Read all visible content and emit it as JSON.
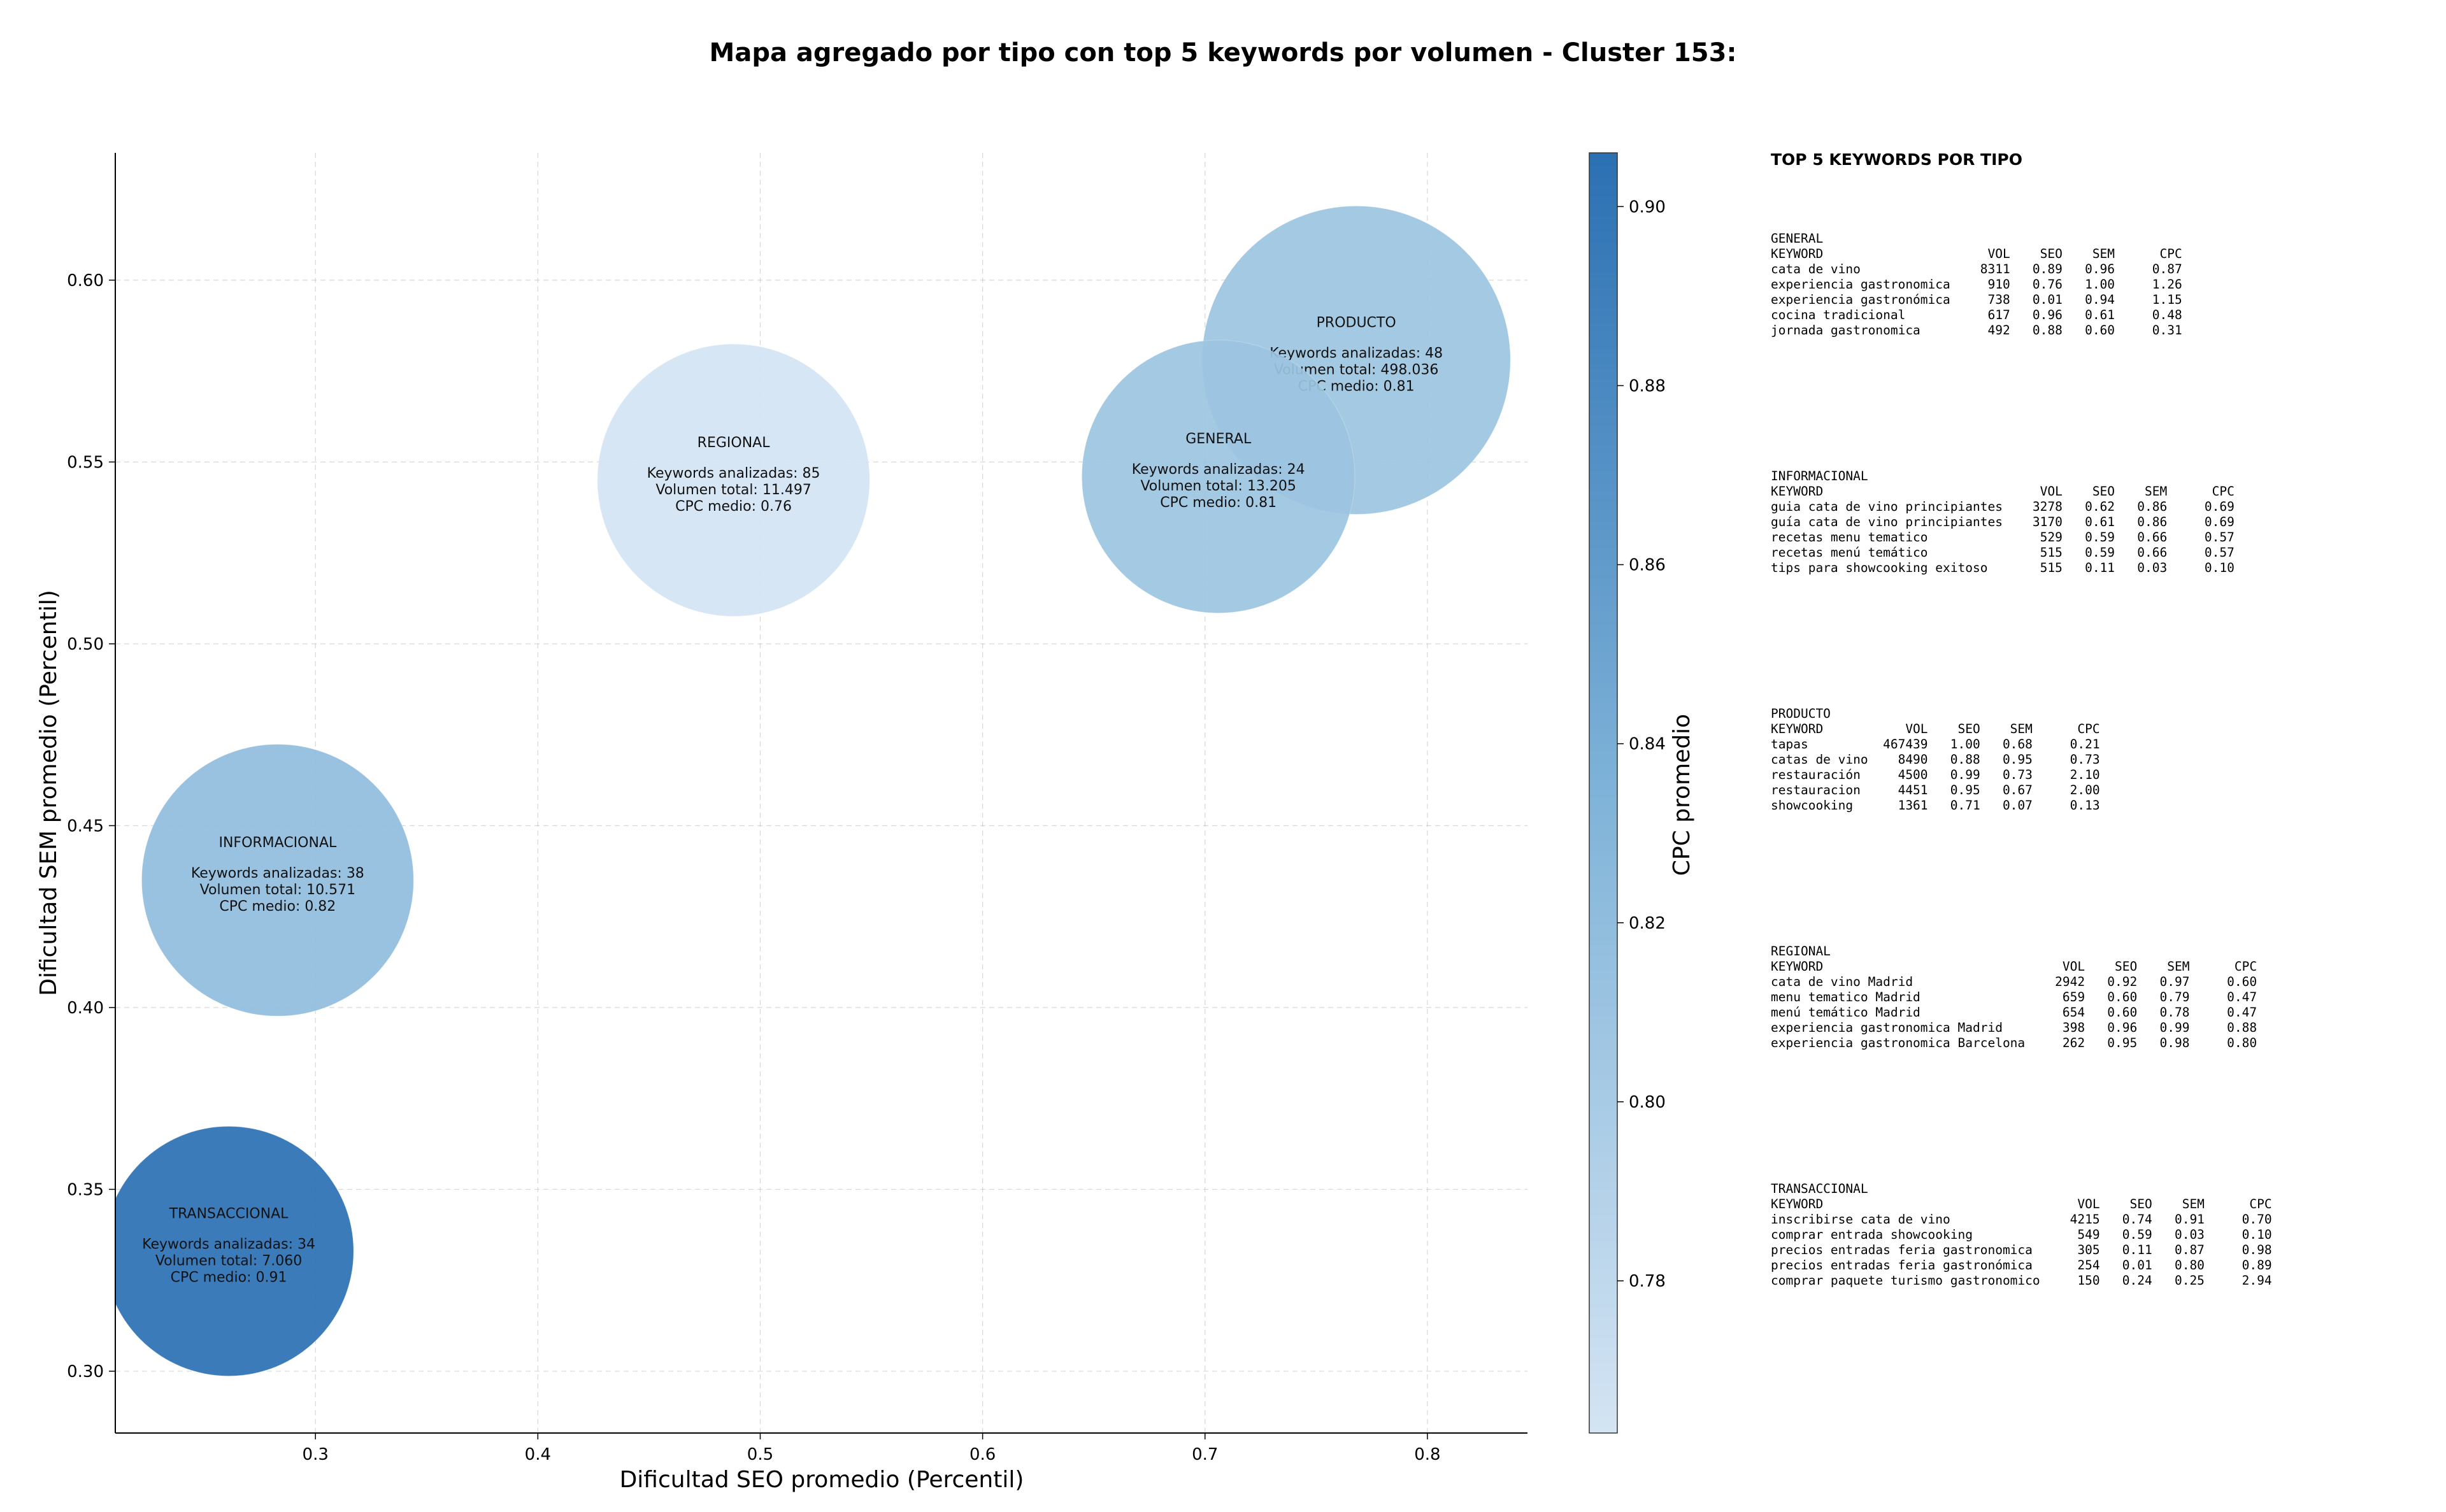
{
  "chart_data": {
    "type": "scatter",
    "title": "Mapa agregado por tipo con top 5 keywords por volumen - Cluster 153:",
    "xlabel": "Dificultad SEO promedio (Percentil)",
    "ylabel": "Dificultad SEM promedio (Percentil)",
    "xlim": [
      0.21,
      0.845
    ],
    "ylim": [
      0.283,
      0.635
    ],
    "xticks": [
      0.3,
      0.4,
      0.5,
      0.6,
      0.7,
      0.8
    ],
    "xtick_labels": [
      "0.3",
      "0.4",
      "0.5",
      "0.6",
      "0.7",
      "0.8"
    ],
    "yticks": [
      0.3,
      0.35,
      0.4,
      0.45,
      0.5,
      0.55,
      0.6
    ],
    "ytick_labels": [
      "0.30",
      "0.35",
      "0.40",
      "0.45",
      "0.50",
      "0.55",
      "0.60"
    ],
    "grid": true,
    "size_encoding": "Volumen total",
    "colorbar": {
      "label": "CPC promedio",
      "min": 0.763,
      "max": 0.906,
      "ticks": [
        0.78,
        0.8,
        0.82,
        0.84,
        0.86,
        0.88,
        0.9
      ],
      "tick_labels": [
        "0.78",
        "0.80",
        "0.82",
        "0.84",
        "0.86",
        "0.88",
        "0.90"
      ],
      "colormap": "Blues",
      "color_low": "#d4e4f3",
      "color_high": "#2b70b3"
    },
    "points": [
      {
        "name": "PRODUCTO",
        "x": 0.768,
        "y": 0.578,
        "cpc": 0.81,
        "keywords": 48,
        "volume": 498036,
        "lines": [
          "Keywords analizadas: 48",
          "Volumen total: 498.036",
          "CPC medio: 0.81"
        ]
      },
      {
        "name": "REGIONAL",
        "x": 0.488,
        "y": 0.545,
        "cpc": 0.76,
        "keywords": 85,
        "volume": 11497,
        "lines": [
          "Keywords analizadas: 85",
          "Volumen total: 11.497",
          "CPC medio: 0.76"
        ]
      },
      {
        "name": "GENERAL",
        "x": 0.706,
        "y": 0.546,
        "cpc": 0.81,
        "keywords": 24,
        "volume": 13205,
        "lines": [
          "Keywords analizadas: 24",
          "Volumen total: 13.205",
          "CPC medio: 0.81"
        ]
      },
      {
        "name": "INFORMACIONAL",
        "x": 0.283,
        "y": 0.435,
        "cpc": 0.82,
        "keywords": 38,
        "volume": 10571,
        "lines": [
          "Keywords analizadas: 38",
          "Volumen total: 10.571",
          "CPC medio: 0.82"
        ]
      },
      {
        "name": "TRANSACCIONAL",
        "x": 0.261,
        "y": 0.333,
        "cpc": 0.91,
        "keywords": 34,
        "volume": 7060,
        "lines": [
          "Keywords analizadas: 34",
          "Volumen total: 7.060",
          "CPC medio: 0.91"
        ]
      }
    ]
  },
  "keywords_panel": {
    "heading": "TOP 5 KEYWORDS POR TIPO",
    "blocks": [
      {
        "type": "GENERAL",
        "columns": [
          "KEYWORD",
          "VOL",
          "SEO",
          "SEM",
          "CPC"
        ],
        "rows": [
          [
            "cata de vino",
            "8311",
            "0.89",
            "0.96",
            "0.87"
          ],
          [
            "experiencia gastronomica",
            "910",
            "0.76",
            "1.00",
            "1.26"
          ],
          [
            "experiencia gastronómica",
            "738",
            "0.01",
            "0.94",
            "1.15"
          ],
          [
            "cocina tradicional",
            "617",
            "0.96",
            "0.61",
            "0.48"
          ],
          [
            "jornada gastronomica",
            "492",
            "0.88",
            "0.60",
            "0.31"
          ]
        ]
      },
      {
        "type": "INFORMACIONAL",
        "columns": [
          "KEYWORD",
          "VOL",
          "SEO",
          "SEM",
          "CPC"
        ],
        "rows": [
          [
            "guia cata de vino principiantes",
            "3278",
            "0.62",
            "0.86",
            "0.69"
          ],
          [
            "guía cata de vino principiantes",
            "3170",
            "0.61",
            "0.86",
            "0.69"
          ],
          [
            "recetas menu tematico",
            "529",
            "0.59",
            "0.66",
            "0.57"
          ],
          [
            "recetas menú temático",
            "515",
            "0.59",
            "0.66",
            "0.57"
          ],
          [
            "tips para showcooking exitoso",
            "515",
            "0.11",
            "0.03",
            "0.10"
          ]
        ]
      },
      {
        "type": "PRODUCTO",
        "columns": [
          "KEYWORD",
          "VOL",
          "SEO",
          "SEM",
          "CPC"
        ],
        "rows": [
          [
            "tapas",
            "467439",
            "1.00",
            "0.68",
            "0.21"
          ],
          [
            "catas de vino",
            "8490",
            "0.88",
            "0.95",
            "0.73"
          ],
          [
            "restauración",
            "4500",
            "0.99",
            "0.73",
            "2.10"
          ],
          [
            "restauracion",
            "4451",
            "0.95",
            "0.67",
            "2.00"
          ],
          [
            "showcooking",
            "1361",
            "0.71",
            "0.07",
            "0.13"
          ]
        ]
      },
      {
        "type": "REGIONAL",
        "columns": [
          "KEYWORD",
          "VOL",
          "SEO",
          "SEM",
          "CPC"
        ],
        "rows": [
          [
            "cata de vino Madrid",
            "2942",
            "0.92",
            "0.97",
            "0.60"
          ],
          [
            "menu tematico Madrid",
            "659",
            "0.60",
            "0.79",
            "0.47"
          ],
          [
            "menú temático Madrid",
            "654",
            "0.60",
            "0.78",
            "0.47"
          ],
          [
            "experiencia gastronomica Madrid",
            "398",
            "0.96",
            "0.99",
            "0.88"
          ],
          [
            "experiencia gastronomica Barcelona",
            "262",
            "0.95",
            "0.98",
            "0.80"
          ]
        ]
      },
      {
        "type": "TRANSACCIONAL",
        "columns": [
          "KEYWORD",
          "VOL",
          "SEO",
          "SEM",
          "CPC"
        ],
        "rows": [
          [
            "inscribirse cata de vino",
            "4215",
            "0.74",
            "0.91",
            "0.70"
          ],
          [
            "comprar entrada showcooking",
            "549",
            "0.59",
            "0.03",
            "0.10"
          ],
          [
            "precios entradas feria gastronomica",
            "305",
            "0.11",
            "0.87",
            "0.98"
          ],
          [
            "precios entradas feria gastronómica",
            "254",
            "0.01",
            "0.80",
            "0.89"
          ],
          [
            "comprar paquete turismo gastronomico",
            "150",
            "0.24",
            "0.25",
            "2.94"
          ]
        ]
      }
    ]
  }
}
